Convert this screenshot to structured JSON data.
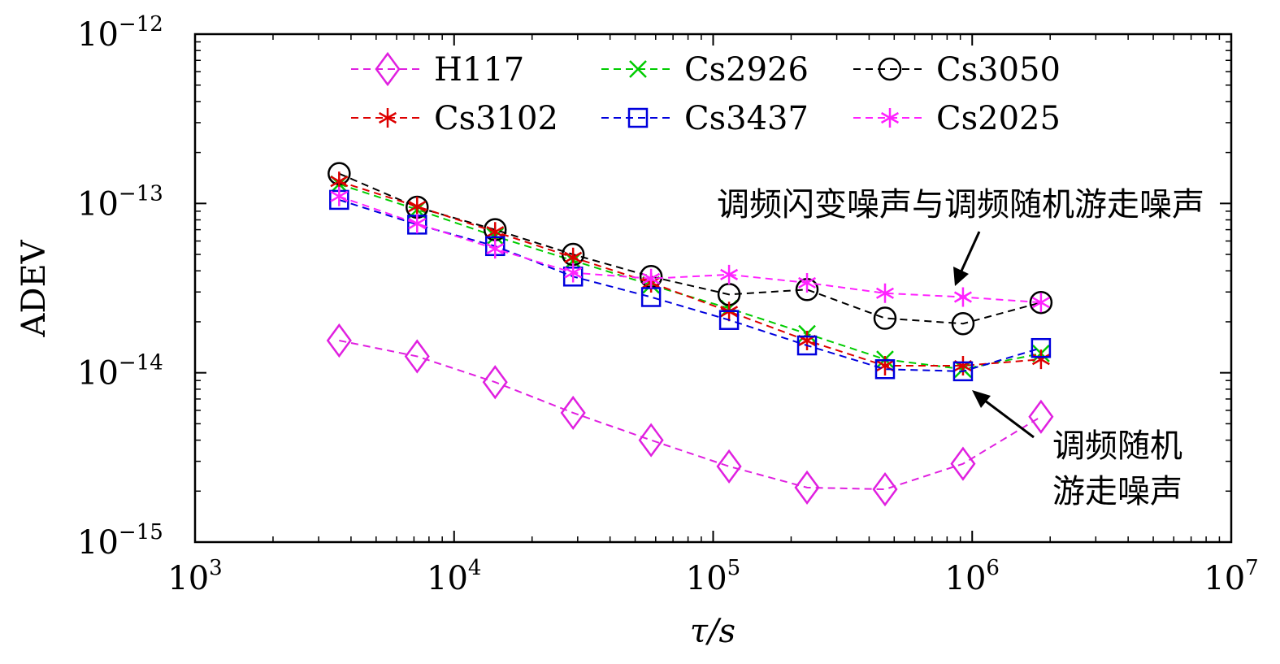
{
  "chart_data": {
    "type": "line",
    "xlabel": "τ/s",
    "ylabel": "ADEV",
    "xscale": "log",
    "yscale": "log",
    "xlim": [
      1000,
      10000000
    ],
    "ylim": [
      1e-15,
      1e-12
    ],
    "grid": false,
    "legend_position": "top",
    "x_ticks": [
      {
        "value": 1000,
        "base": "10",
        "exp": "3"
      },
      {
        "value": 10000,
        "base": "10",
        "exp": "4"
      },
      {
        "value": 100000,
        "base": "10",
        "exp": "5"
      },
      {
        "value": 1000000,
        "base": "10",
        "exp": "6"
      },
      {
        "value": 10000000,
        "base": "10",
        "exp": "7"
      }
    ],
    "y_ticks": [
      {
        "value": 1e-12,
        "base": "10",
        "exp": "−12"
      },
      {
        "value": 1e-13,
        "base": "10",
        "exp": "−13"
      },
      {
        "value": 1e-14,
        "base": "10",
        "exp": "−14"
      },
      {
        "value": 1e-15,
        "base": "10",
        "exp": "−15"
      }
    ],
    "x": [
      3600,
      7200,
      14400,
      28800,
      57600,
      115200,
      230400,
      460800,
      921600,
      1843200
    ],
    "series": [
      {
        "name": "H117",
        "color": "#e020e0",
        "marker": "diamond",
        "values": [
          1.55e-14,
          1.25e-14,
          8.8e-15,
          5.8e-15,
          4e-15,
          2.8e-15,
          2.1e-15,
          2.05e-15,
          2.9e-15,
          5.5e-15
        ]
      },
      {
        "name": "Cs2926",
        "color": "#00cc00",
        "marker": "x",
        "values": [
          1.3e-13,
          9.2e-14,
          6.4e-14,
          4.6e-14,
          3.3e-14,
          2.4e-14,
          1.7e-14,
          1.2e-14,
          1.05e-14,
          1.3e-14
        ]
      },
      {
        "name": "Cs3050",
        "color": "#000000",
        "marker": "circle",
        "values": [
          1.5e-13,
          9.5e-14,
          7e-14,
          5e-14,
          3.7e-14,
          2.9e-14,
          3.1e-14,
          2.1e-14,
          1.95e-14,
          2.6e-14
        ]
      },
      {
        "name": "Cs3102",
        "color": "#dd0000",
        "marker": "asterisk",
        "values": [
          1.35e-13,
          9.6e-14,
          6.8e-14,
          4.8e-14,
          3.4e-14,
          2.3e-14,
          1.55e-14,
          1.1e-14,
          1.1e-14,
          1.2e-14
        ]
      },
      {
        "name": "Cs3437",
        "color": "#0000dd",
        "marker": "square",
        "values": [
          1.05e-13,
          7.5e-14,
          5.6e-14,
          3.7e-14,
          2.8e-14,
          2.05e-14,
          1.45e-14,
          1.05e-14,
          1.02e-14,
          1.4e-14
        ]
      },
      {
        "name": "Cs2025",
        "color": "#ff22ff",
        "marker": "asterisk",
        "values": [
          1.1e-13,
          7.6e-14,
          5.4e-14,
          3.9e-14,
          3.6e-14,
          3.8e-14,
          3.4e-14,
          2.95e-14,
          2.8e-14,
          2.6e-14
        ]
      }
    ],
    "annotations": [
      {
        "text": "调频闪变噪声与调频随机游走噪声",
        "lines": [
          "调频闪变噪声与调频随机游走噪声"
        ]
      },
      {
        "text": "调频随机游走噪声",
        "lines": [
          "调频随机",
          "游走噪声"
        ]
      }
    ]
  }
}
